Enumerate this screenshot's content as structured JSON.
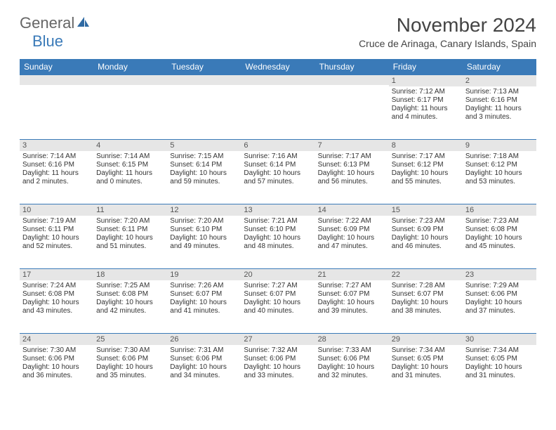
{
  "logo": {
    "general": "General",
    "blue": "Blue"
  },
  "title": "November 2024",
  "location": "Cruce de Arinaga, Canary Islands, Spain",
  "colors": {
    "header_bg": "#3a7ab8",
    "header_text": "#ffffff",
    "daynum_bg": "#e6e6e6",
    "border": "#3a7ab8",
    "text": "#333333",
    "title_text": "#444444"
  },
  "fonts": {
    "title_size_pt": 21,
    "location_size_pt": 11,
    "dayheader_size_pt": 9,
    "daytext_size_pt": 7.5
  },
  "day_headers": [
    "Sunday",
    "Monday",
    "Tuesday",
    "Wednesday",
    "Thursday",
    "Friday",
    "Saturday"
  ],
  "weeks": [
    [
      {
        "n": "",
        "sunrise": "",
        "sunset": "",
        "daylight": ""
      },
      {
        "n": "",
        "sunrise": "",
        "sunset": "",
        "daylight": ""
      },
      {
        "n": "",
        "sunrise": "",
        "sunset": "",
        "daylight": ""
      },
      {
        "n": "",
        "sunrise": "",
        "sunset": "",
        "daylight": ""
      },
      {
        "n": "",
        "sunrise": "",
        "sunset": "",
        "daylight": ""
      },
      {
        "n": "1",
        "sunrise": "Sunrise: 7:12 AM",
        "sunset": "Sunset: 6:17 PM",
        "daylight": "Daylight: 11 hours and 4 minutes."
      },
      {
        "n": "2",
        "sunrise": "Sunrise: 7:13 AM",
        "sunset": "Sunset: 6:16 PM",
        "daylight": "Daylight: 11 hours and 3 minutes."
      }
    ],
    [
      {
        "n": "3",
        "sunrise": "Sunrise: 7:14 AM",
        "sunset": "Sunset: 6:16 PM",
        "daylight": "Daylight: 11 hours and 2 minutes."
      },
      {
        "n": "4",
        "sunrise": "Sunrise: 7:14 AM",
        "sunset": "Sunset: 6:15 PM",
        "daylight": "Daylight: 11 hours and 0 minutes."
      },
      {
        "n": "5",
        "sunrise": "Sunrise: 7:15 AM",
        "sunset": "Sunset: 6:14 PM",
        "daylight": "Daylight: 10 hours and 59 minutes."
      },
      {
        "n": "6",
        "sunrise": "Sunrise: 7:16 AM",
        "sunset": "Sunset: 6:14 PM",
        "daylight": "Daylight: 10 hours and 57 minutes."
      },
      {
        "n": "7",
        "sunrise": "Sunrise: 7:17 AM",
        "sunset": "Sunset: 6:13 PM",
        "daylight": "Daylight: 10 hours and 56 minutes."
      },
      {
        "n": "8",
        "sunrise": "Sunrise: 7:17 AM",
        "sunset": "Sunset: 6:12 PM",
        "daylight": "Daylight: 10 hours and 55 minutes."
      },
      {
        "n": "9",
        "sunrise": "Sunrise: 7:18 AM",
        "sunset": "Sunset: 6:12 PM",
        "daylight": "Daylight: 10 hours and 53 minutes."
      }
    ],
    [
      {
        "n": "10",
        "sunrise": "Sunrise: 7:19 AM",
        "sunset": "Sunset: 6:11 PM",
        "daylight": "Daylight: 10 hours and 52 minutes."
      },
      {
        "n": "11",
        "sunrise": "Sunrise: 7:20 AM",
        "sunset": "Sunset: 6:11 PM",
        "daylight": "Daylight: 10 hours and 51 minutes."
      },
      {
        "n": "12",
        "sunrise": "Sunrise: 7:20 AM",
        "sunset": "Sunset: 6:10 PM",
        "daylight": "Daylight: 10 hours and 49 minutes."
      },
      {
        "n": "13",
        "sunrise": "Sunrise: 7:21 AM",
        "sunset": "Sunset: 6:10 PM",
        "daylight": "Daylight: 10 hours and 48 minutes."
      },
      {
        "n": "14",
        "sunrise": "Sunrise: 7:22 AM",
        "sunset": "Sunset: 6:09 PM",
        "daylight": "Daylight: 10 hours and 47 minutes."
      },
      {
        "n": "15",
        "sunrise": "Sunrise: 7:23 AM",
        "sunset": "Sunset: 6:09 PM",
        "daylight": "Daylight: 10 hours and 46 minutes."
      },
      {
        "n": "16",
        "sunrise": "Sunrise: 7:23 AM",
        "sunset": "Sunset: 6:08 PM",
        "daylight": "Daylight: 10 hours and 45 minutes."
      }
    ],
    [
      {
        "n": "17",
        "sunrise": "Sunrise: 7:24 AM",
        "sunset": "Sunset: 6:08 PM",
        "daylight": "Daylight: 10 hours and 43 minutes."
      },
      {
        "n": "18",
        "sunrise": "Sunrise: 7:25 AM",
        "sunset": "Sunset: 6:08 PM",
        "daylight": "Daylight: 10 hours and 42 minutes."
      },
      {
        "n": "19",
        "sunrise": "Sunrise: 7:26 AM",
        "sunset": "Sunset: 6:07 PM",
        "daylight": "Daylight: 10 hours and 41 minutes."
      },
      {
        "n": "20",
        "sunrise": "Sunrise: 7:27 AM",
        "sunset": "Sunset: 6:07 PM",
        "daylight": "Daylight: 10 hours and 40 minutes."
      },
      {
        "n": "21",
        "sunrise": "Sunrise: 7:27 AM",
        "sunset": "Sunset: 6:07 PM",
        "daylight": "Daylight: 10 hours and 39 minutes."
      },
      {
        "n": "22",
        "sunrise": "Sunrise: 7:28 AM",
        "sunset": "Sunset: 6:07 PM",
        "daylight": "Daylight: 10 hours and 38 minutes."
      },
      {
        "n": "23",
        "sunrise": "Sunrise: 7:29 AM",
        "sunset": "Sunset: 6:06 PM",
        "daylight": "Daylight: 10 hours and 37 minutes."
      }
    ],
    [
      {
        "n": "24",
        "sunrise": "Sunrise: 7:30 AM",
        "sunset": "Sunset: 6:06 PM",
        "daylight": "Daylight: 10 hours and 36 minutes."
      },
      {
        "n": "25",
        "sunrise": "Sunrise: 7:30 AM",
        "sunset": "Sunset: 6:06 PM",
        "daylight": "Daylight: 10 hours and 35 minutes."
      },
      {
        "n": "26",
        "sunrise": "Sunrise: 7:31 AM",
        "sunset": "Sunset: 6:06 PM",
        "daylight": "Daylight: 10 hours and 34 minutes."
      },
      {
        "n": "27",
        "sunrise": "Sunrise: 7:32 AM",
        "sunset": "Sunset: 6:06 PM",
        "daylight": "Daylight: 10 hours and 33 minutes."
      },
      {
        "n": "28",
        "sunrise": "Sunrise: 7:33 AM",
        "sunset": "Sunset: 6:06 PM",
        "daylight": "Daylight: 10 hours and 32 minutes."
      },
      {
        "n": "29",
        "sunrise": "Sunrise: 7:34 AM",
        "sunset": "Sunset: 6:05 PM",
        "daylight": "Daylight: 10 hours and 31 minutes."
      },
      {
        "n": "30",
        "sunrise": "Sunrise: 7:34 AM",
        "sunset": "Sunset: 6:05 PM",
        "daylight": "Daylight: 10 hours and 31 minutes."
      }
    ]
  ]
}
